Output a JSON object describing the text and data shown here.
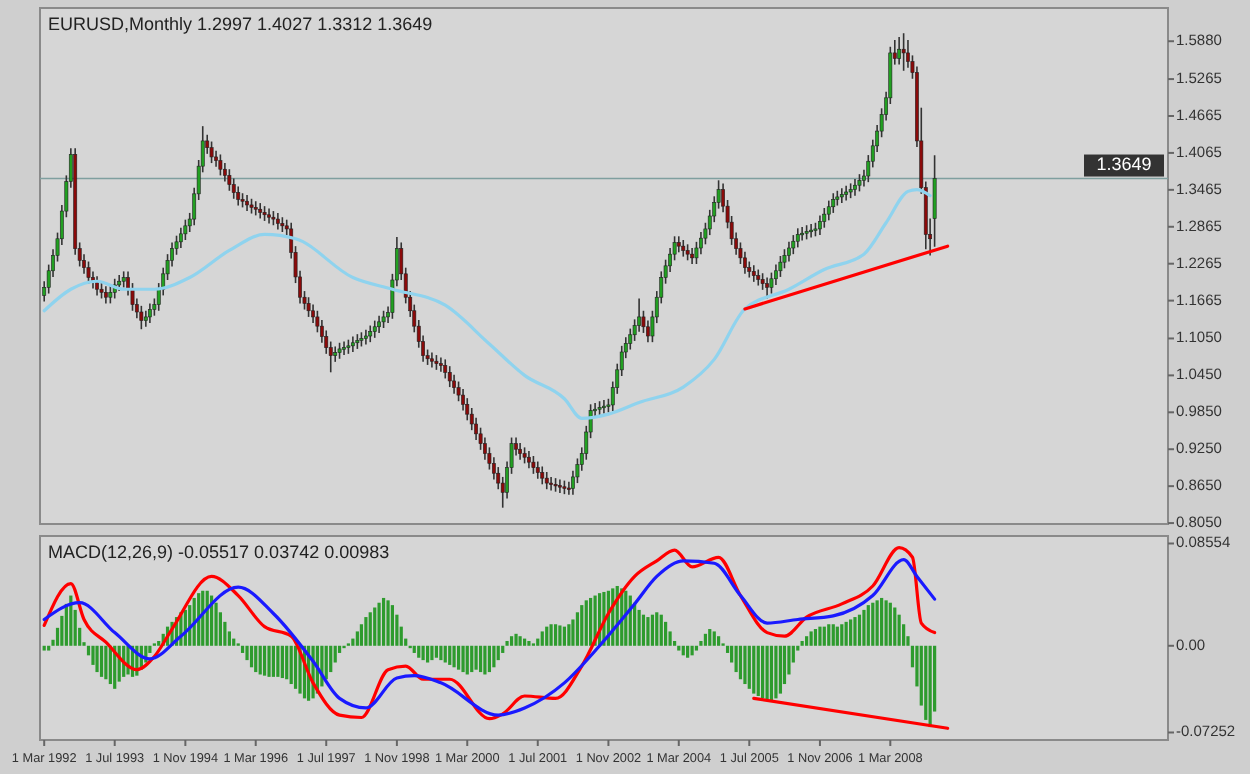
{
  "chart_data": [
    {
      "type": "candlestick",
      "title": "EURUSD,Monthly 1.2997 1.4027 1.3312 1.3649",
      "xlim": [
        "1992-02",
        "2013-06"
      ],
      "ylim": [
        0.8035,
        1.642
      ],
      "tick_labels": "y",
      "yticks": [
        {
          "value": 1.588,
          "label": "1.5880"
        },
        {
          "value": 1.5265,
          "label": "1.5265"
        },
        {
          "value": 1.4665,
          "label": "1.4665"
        },
        {
          "value": 1.4065,
          "label": "1.4065"
        },
        {
          "value": 1.3465,
          "label": "1.3465"
        },
        {
          "value": 1.2865,
          "label": "1.2865"
        },
        {
          "value": 1.2265,
          "label": "1.2265"
        },
        {
          "value": 1.1665,
          "label": "1.1665"
        },
        {
          "value": 1.105,
          "label": "1.1050"
        },
        {
          "value": 1.045,
          "label": "1.0450"
        },
        {
          "value": 0.985,
          "label": "0.9850"
        },
        {
          "value": 0.925,
          "label": "0.9250"
        },
        {
          "value": 0.865,
          "label": "0.8650"
        },
        {
          "value": 0.805,
          "label": "0.8050"
        }
      ],
      "ref_lines": [
        {
          "axis": "y",
          "value": 1.3649,
          "label": "1.3649",
          "color": "#7f9f9f"
        }
      ],
      "x": [
        "1992-03",
        "1992-04",
        "1992-05",
        "1992-06",
        "1992-07",
        "1992-08",
        "1992-09",
        "1992-10",
        "1992-11",
        "1992-12",
        "1993-01",
        "1993-02",
        "1993-03",
        "1993-04",
        "1993-05",
        "1993-06",
        "1993-07",
        "1993-08",
        "1993-09",
        "1993-10",
        "1993-11",
        "1993-12",
        "1994-01",
        "1994-02",
        "1994-03",
        "1994-04",
        "1994-05",
        "1994-06",
        "1994-07",
        "1994-08",
        "1994-09",
        "1994-10",
        "1994-11",
        "1994-12",
        "1995-01",
        "1995-02",
        "1995-03",
        "1995-04",
        "1995-05",
        "1995-06",
        "1995-07",
        "1995-08",
        "1995-09",
        "1995-10",
        "1995-11",
        "1995-12",
        "1996-01",
        "1996-02",
        "1996-03",
        "1996-04",
        "1996-05",
        "1996-06",
        "1996-07",
        "1996-08",
        "1996-09",
        "1996-10",
        "1996-11",
        "1996-12",
        "1997-01",
        "1997-02",
        "1997-03",
        "1997-04",
        "1997-05",
        "1997-06",
        "1997-07",
        "1997-08",
        "1997-09",
        "1997-10",
        "1997-11",
        "1997-12",
        "1998-01",
        "1998-02",
        "1998-03",
        "1998-04",
        "1998-05",
        "1998-06",
        "1998-07",
        "1998-08",
        "1998-09",
        "1998-10",
        "1998-11",
        "1998-12",
        "1999-01",
        "1999-02",
        "1999-03",
        "1999-04",
        "1999-05",
        "1999-06",
        "1999-07",
        "1999-08",
        "1999-09",
        "1999-10",
        "1999-11",
        "1999-12",
        "2000-01",
        "2000-02",
        "2000-03",
        "2000-04",
        "2000-05",
        "2000-06",
        "2000-07",
        "2000-08",
        "2000-09",
        "2000-10",
        "2000-11",
        "2000-12",
        "2001-01",
        "2001-02",
        "2001-03",
        "2001-04",
        "2001-05",
        "2001-06",
        "2001-07",
        "2001-08",
        "2001-09",
        "2001-10",
        "2001-11",
        "2001-12",
        "2002-01",
        "2002-02",
        "2002-03",
        "2002-04",
        "2002-05",
        "2002-06",
        "2002-07",
        "2002-08",
        "2002-09",
        "2002-10",
        "2002-11",
        "2002-12",
        "2003-01",
        "2003-02",
        "2003-03",
        "2003-04",
        "2003-05",
        "2003-06",
        "2003-07",
        "2003-08",
        "2003-09",
        "2003-10",
        "2003-11",
        "2003-12",
        "2004-01",
        "2004-02",
        "2004-03",
        "2004-04",
        "2004-05",
        "2004-06",
        "2004-07",
        "2004-08",
        "2004-09",
        "2004-10",
        "2004-11",
        "2004-12",
        "2005-01",
        "2005-02",
        "2005-03",
        "2005-04",
        "2005-05",
        "2005-06",
        "2005-07",
        "2005-08",
        "2005-09",
        "2005-10",
        "2005-11",
        "2005-12",
        "2006-01",
        "2006-02",
        "2006-03",
        "2006-04",
        "2006-05",
        "2006-06",
        "2006-07",
        "2006-08",
        "2006-09",
        "2006-10",
        "2006-11",
        "2006-12",
        "2007-01",
        "2007-02",
        "2007-03",
        "2007-04",
        "2007-05",
        "2007-06",
        "2007-07",
        "2007-08",
        "2007-09",
        "2007-10",
        "2007-11",
        "2007-12",
        "2008-01",
        "2008-02",
        "2008-03",
        "2008-04",
        "2008-05",
        "2008-06",
        "2008-07",
        "2008-08",
        "2008-09",
        "2008-10",
        "2008-11",
        "2008-12",
        "2009-01"
      ],
      "ohlc": [
        [
          1.175,
          1.198,
          1.165,
          1.188
        ],
        [
          1.188,
          1.225,
          1.178,
          1.215
        ],
        [
          1.215,
          1.25,
          1.205,
          1.24
        ],
        [
          1.24,
          1.277,
          1.23,
          1.267
        ],
        [
          1.267,
          1.322,
          1.257,
          1.312
        ],
        [
          1.312,
          1.37,
          1.302,
          1.36
        ],
        [
          1.36,
          1.414,
          1.35,
          1.404
        ],
        [
          1.404,
          1.414,
          1.241,
          1.251
        ],
        [
          1.251,
          1.261,
          1.222,
          1.232
        ],
        [
          1.232,
          1.242,
          1.21,
          1.22
        ],
        [
          1.22,
          1.23,
          1.194,
          1.204
        ],
        [
          1.204,
          1.214,
          1.186,
          1.196
        ],
        [
          1.196,
          1.206,
          1.175,
          1.185
        ],
        [
          1.185,
          1.195,
          1.17,
          1.18
        ],
        [
          1.18,
          1.19,
          1.162,
          1.172
        ],
        [
          1.172,
          1.19,
          1.162,
          1.18
        ],
        [
          1.18,
          1.202,
          1.17,
          1.192
        ],
        [
          1.192,
          1.208,
          1.182,
          1.198
        ],
        [
          1.198,
          1.214,
          1.188,
          1.204
        ],
        [
          1.204,
          1.214,
          1.175,
          1.185
        ],
        [
          1.185,
          1.195,
          1.15,
          1.16
        ],
        [
          1.16,
          1.17,
          1.138,
          1.148
        ],
        [
          1.148,
          1.158,
          1.12,
          1.134
        ],
        [
          1.134,
          1.15,
          1.124,
          1.14
        ],
        [
          1.14,
          1.162,
          1.13,
          1.152
        ],
        [
          1.152,
          1.17,
          1.142,
          1.16
        ],
        [
          1.16,
          1.195,
          1.15,
          1.185
        ],
        [
          1.185,
          1.22,
          1.175,
          1.21
        ],
        [
          1.21,
          1.242,
          1.2,
          1.232
        ],
        [
          1.232,
          1.261,
          1.222,
          1.251
        ],
        [
          1.251,
          1.272,
          1.241,
          1.262
        ],
        [
          1.262,
          1.285,
          1.252,
          1.275
        ],
        [
          1.275,
          1.298,
          1.265,
          1.288
        ],
        [
          1.288,
          1.309,
          1.278,
          1.299
        ],
        [
          1.299,
          1.35,
          1.289,
          1.34
        ],
        [
          1.34,
          1.395,
          1.33,
          1.385
        ],
        [
          1.385,
          1.45,
          1.375,
          1.426
        ],
        [
          1.426,
          1.436,
          1.405,
          1.415
        ],
        [
          1.415,
          1.425,
          1.39,
          1.4
        ],
        [
          1.4,
          1.41,
          1.384,
          1.394
        ],
        [
          1.394,
          1.404,
          1.37,
          1.38
        ],
        [
          1.38,
          1.39,
          1.36,
          1.37
        ],
        [
          1.37,
          1.38,
          1.345,
          1.355
        ],
        [
          1.355,
          1.365,
          1.332,
          1.342
        ],
        [
          1.342,
          1.352,
          1.321,
          1.331
        ],
        [
          1.331,
          1.341,
          1.318,
          1.328
        ],
        [
          1.328,
          1.338,
          1.312,
          1.322
        ],
        [
          1.322,
          1.332,
          1.308,
          1.318
        ],
        [
          1.318,
          1.328,
          1.305,
          1.315
        ],
        [
          1.315,
          1.325,
          1.3,
          1.31
        ],
        [
          1.31,
          1.32,
          1.296,
          1.306
        ],
        [
          1.306,
          1.316,
          1.292,
          1.302
        ],
        [
          1.302,
          1.312,
          1.289,
          1.299
        ],
        [
          1.299,
          1.309,
          1.282,
          1.292
        ],
        [
          1.292,
          1.302,
          1.278,
          1.288
        ],
        [
          1.288,
          1.298,
          1.273,
          1.283
        ],
        [
          1.283,
          1.293,
          1.235,
          1.245
        ],
        [
          1.245,
          1.255,
          1.195,
          1.205
        ],
        [
          1.205,
          1.215,
          1.162,
          1.172
        ],
        [
          1.172,
          1.182,
          1.152,
          1.162
        ],
        [
          1.162,
          1.172,
          1.14,
          1.15
        ],
        [
          1.15,
          1.16,
          1.13,
          1.14
        ],
        [
          1.14,
          1.15,
          1.115,
          1.125
        ],
        [
          1.125,
          1.135,
          1.098,
          1.108
        ],
        [
          1.108,
          1.118,
          1.08,
          1.09
        ],
        [
          1.09,
          1.1,
          1.05,
          1.077
        ],
        [
          1.077,
          1.092,
          1.067,
          1.082
        ],
        [
          1.082,
          1.098,
          1.072,
          1.088
        ],
        [
          1.088,
          1.1,
          1.078,
          1.09
        ],
        [
          1.09,
          1.103,
          1.08,
          1.093
        ],
        [
          1.093,
          1.108,
          1.083,
          1.098
        ],
        [
          1.098,
          1.112,
          1.088,
          1.102
        ],
        [
          1.102,
          1.115,
          1.092,
          1.105
        ],
        [
          1.105,
          1.119,
          1.095,
          1.109
        ],
        [
          1.109,
          1.126,
          1.099,
          1.116
        ],
        [
          1.116,
          1.134,
          1.106,
          1.124
        ],
        [
          1.124,
          1.142,
          1.114,
          1.132
        ],
        [
          1.132,
          1.15,
          1.122,
          1.14
        ],
        [
          1.14,
          1.157,
          1.13,
          1.147
        ],
        [
          1.147,
          1.21,
          1.137,
          1.2
        ],
        [
          1.2,
          1.27,
          1.19,
          1.251
        ],
        [
          1.251,
          1.261,
          1.2,
          1.21
        ],
        [
          1.21,
          1.22,
          1.162,
          1.172
        ],
        [
          1.172,
          1.182,
          1.14,
          1.15
        ],
        [
          1.15,
          1.16,
          1.115,
          1.125
        ],
        [
          1.125,
          1.135,
          1.09,
          1.1
        ],
        [
          1.1,
          1.11,
          1.067,
          1.077
        ],
        [
          1.077,
          1.087,
          1.062,
          1.072
        ],
        [
          1.072,
          1.082,
          1.058,
          1.068
        ],
        [
          1.068,
          1.078,
          1.054,
          1.064
        ],
        [
          1.064,
          1.074,
          1.051,
          1.061
        ],
        [
          1.061,
          1.071,
          1.04,
          1.05
        ],
        [
          1.05,
          1.06,
          1.026,
          1.036
        ],
        [
          1.036,
          1.046,
          1.015,
          1.025
        ],
        [
          1.025,
          1.035,
          1.003,
          1.013
        ],
        [
          1.013,
          1.023,
          0.988,
          0.998
        ],
        [
          0.998,
          1.008,
          0.972,
          0.982
        ],
        [
          0.982,
          0.992,
          0.956,
          0.966
        ],
        [
          0.966,
          0.976,
          0.94,
          0.95
        ],
        [
          0.95,
          0.96,
          0.924,
          0.934
        ],
        [
          0.934,
          0.944,
          0.908,
          0.918
        ],
        [
          0.918,
          0.928,
          0.892,
          0.902
        ],
        [
          0.902,
          0.912,
          0.876,
          0.886
        ],
        [
          0.886,
          0.896,
          0.86,
          0.87
        ],
        [
          0.87,
          0.88,
          0.83,
          0.855
        ],
        [
          0.855,
          0.905,
          0.845,
          0.895
        ],
        [
          0.895,
          0.944,
          0.885,
          0.934
        ],
        [
          0.934,
          0.944,
          0.915,
          0.925
        ],
        [
          0.925,
          0.935,
          0.908,
          0.918
        ],
        [
          0.918,
          0.928,
          0.902,
          0.912
        ],
        [
          0.912,
          0.922,
          0.894,
          0.904
        ],
        [
          0.904,
          0.914,
          0.885,
          0.895
        ],
        [
          0.895,
          0.905,
          0.877,
          0.887
        ],
        [
          0.887,
          0.897,
          0.868,
          0.878
        ],
        [
          0.878,
          0.888,
          0.86,
          0.87
        ],
        [
          0.87,
          0.88,
          0.858,
          0.868
        ],
        [
          0.868,
          0.878,
          0.856,
          0.866
        ],
        [
          0.866,
          0.876,
          0.854,
          0.864
        ],
        [
          0.864,
          0.874,
          0.852,
          0.862
        ],
        [
          0.862,
          0.872,
          0.851,
          0.861
        ],
        [
          0.861,
          0.89,
          0.851,
          0.88
        ],
        [
          0.88,
          0.91,
          0.87,
          0.9
        ],
        [
          0.9,
          0.928,
          0.89,
          0.918
        ],
        [
          0.918,
          0.963,
          0.908,
          0.953
        ],
        [
          0.953,
          0.998,
          0.943,
          0.988
        ],
        [
          0.988,
          1.0,
          0.978,
          0.99
        ],
        [
          0.99,
          1.003,
          0.98,
          0.993
        ],
        [
          0.993,
          1.005,
          0.983,
          0.995
        ],
        [
          0.995,
          1.007,
          0.985,
          0.997
        ],
        [
          0.997,
          1.035,
          0.987,
          1.025
        ],
        [
          1.025,
          1.064,
          1.015,
          1.054
        ],
        [
          1.054,
          1.093,
          1.044,
          1.083
        ],
        [
          1.083,
          1.107,
          1.073,
          1.097
        ],
        [
          1.097,
          1.121,
          1.087,
          1.111
        ],
        [
          1.111,
          1.136,
          1.101,
          1.126
        ],
        [
          1.126,
          1.17,
          1.116,
          1.14
        ],
        [
          1.14,
          1.15,
          1.114,
          1.124
        ],
        [
          1.124,
          1.134,
          1.099,
          1.109
        ],
        [
          1.109,
          1.15,
          1.099,
          1.14
        ],
        [
          1.14,
          1.182,
          1.13,
          1.172
        ],
        [
          1.172,
          1.214,
          1.162,
          1.204
        ],
        [
          1.204,
          1.233,
          1.194,
          1.223
        ],
        [
          1.223,
          1.252,
          1.213,
          1.242
        ],
        [
          1.242,
          1.271,
          1.232,
          1.261
        ],
        [
          1.261,
          1.271,
          1.245,
          1.255
        ],
        [
          1.255,
          1.265,
          1.238,
          1.248
        ],
        [
          1.248,
          1.258,
          1.232,
          1.242
        ],
        [
          1.242,
          1.252,
          1.226,
          1.236
        ],
        [
          1.236,
          1.262,
          1.226,
          1.252
        ],
        [
          1.252,
          1.278,
          1.242,
          1.268
        ],
        [
          1.268,
          1.293,
          1.258,
          1.283
        ],
        [
          1.283,
          1.314,
          1.273,
          1.304
        ],
        [
          1.304,
          1.336,
          1.294,
          1.326
        ],
        [
          1.326,
          1.362,
          1.316,
          1.347
        ],
        [
          1.347,
          1.357,
          1.31,
          1.32
        ],
        [
          1.32,
          1.33,
          1.284,
          1.294
        ],
        [
          1.294,
          1.304,
          1.257,
          1.267
        ],
        [
          1.267,
          1.277,
          1.241,
          1.251
        ],
        [
          1.251,
          1.261,
          1.226,
          1.236
        ],
        [
          1.236,
          1.246,
          1.21,
          1.22
        ],
        [
          1.22,
          1.23,
          1.204,
          1.214
        ],
        [
          1.214,
          1.224,
          1.197,
          1.207
        ],
        [
          1.207,
          1.217,
          1.191,
          1.201
        ],
        [
          1.201,
          1.211,
          1.184,
          1.194
        ],
        [
          1.194,
          1.204,
          1.17,
          1.188
        ],
        [
          1.188,
          1.212,
          1.178,
          1.202
        ],
        [
          1.202,
          1.225,
          1.192,
          1.215
        ],
        [
          1.215,
          1.239,
          1.205,
          1.229
        ],
        [
          1.229,
          1.25,
          1.219,
          1.24
        ],
        [
          1.24,
          1.262,
          1.23,
          1.252
        ],
        [
          1.252,
          1.273,
          1.242,
          1.263
        ],
        [
          1.263,
          1.284,
          1.253,
          1.274
        ],
        [
          1.274,
          1.286,
          1.264,
          1.276
        ],
        [
          1.276,
          1.289,
          1.266,
          1.279
        ],
        [
          1.279,
          1.291,
          1.269,
          1.281
        ],
        [
          1.281,
          1.293,
          1.271,
          1.283
        ],
        [
          1.283,
          1.305,
          1.273,
          1.295
        ],
        [
          1.295,
          1.317,
          1.285,
          1.307
        ],
        [
          1.307,
          1.329,
          1.297,
          1.319
        ],
        [
          1.319,
          1.341,
          1.309,
          1.331
        ],
        [
          1.331,
          1.345,
          1.321,
          1.335
        ],
        [
          1.335,
          1.349,
          1.325,
          1.339
        ],
        [
          1.339,
          1.353,
          1.329,
          1.343
        ],
        [
          1.343,
          1.357,
          1.333,
          1.347
        ],
        [
          1.347,
          1.364,
          1.337,
          1.354
        ],
        [
          1.354,
          1.372,
          1.344,
          1.362
        ],
        [
          1.362,
          1.379,
          1.352,
          1.369
        ],
        [
          1.369,
          1.403,
          1.359,
          1.393
        ],
        [
          1.393,
          1.428,
          1.383,
          1.418
        ],
        [
          1.418,
          1.452,
          1.408,
          1.442
        ],
        [
          1.442,
          1.479,
          1.432,
          1.469
        ],
        [
          1.469,
          1.506,
          1.459,
          1.496
        ],
        [
          1.496,
          1.579,
          1.486,
          1.569
        ],
        [
          1.569,
          1.59,
          1.55,
          1.56
        ],
        [
          1.56,
          1.595,
          1.55,
          1.575
        ],
        [
          1.575,
          1.601,
          1.54,
          1.569
        ],
        [
          1.569,
          1.59,
          1.545,
          1.555
        ],
        [
          1.555,
          1.565,
          1.527,
          1.537
        ],
        [
          1.537,
          1.547,
          1.416,
          1.426
        ],
        [
          1.426,
          1.48,
          1.34,
          1.35
        ],
        [
          1.35,
          1.36,
          1.25,
          1.274
        ],
        [
          1.274,
          1.3,
          1.24,
          1.267
        ],
        [
          1.2997,
          1.4027,
          1.254,
          1.3649
        ]
      ],
      "series": [
        {
          "type": "line",
          "color": "#8fd3ee",
          "x": [
            "1992-03",
            "1992-09",
            "1993-03",
            "1993-09",
            "1994-04",
            "1994-12",
            "1995-09",
            "1996-05",
            "1996-12",
            "1998-01",
            "1998-10",
            "1999-10",
            "2000-08",
            "2001-04",
            "2002-01",
            "2002-05",
            "2002-11",
            "2003-06",
            "2004-04",
            "2004-11",
            "2005-06",
            "2006-04",
            "2006-12",
            "2007-09",
            "2008-02",
            "2008-07",
            "2008-09",
            "2008-12"
          ],
          "values": [
            1.15,
            1.185,
            1.198,
            1.185,
            1.185,
            1.204,
            1.248,
            1.274,
            1.267,
            1.204,
            1.185,
            1.159,
            1.096,
            1.045,
            1.007,
            0.975,
            0.982,
            1.001,
            1.026,
            1.071,
            1.153,
            1.185,
            1.217,
            1.242,
            1.293,
            1.344,
            1.347,
            1.337
          ]
        },
        {
          "type": "line",
          "color": "#ff0000",
          "x": [
            "2005-06",
            "2009-04"
          ],
          "values": [
            1.153,
            1.255
          ]
        }
      ]
    },
    {
      "type": "bar",
      "title": "MACD(12,26,9) -0.05517 0.03742 0.00983",
      "xlim": [
        "1992-02",
        "2013-06"
      ],
      "ylim": [
        -0.0788,
        0.0918
      ],
      "yticks": [
        {
          "value": 0.08554,
          "label": "0.08554"
        },
        {
          "value": 0,
          "label": "0.00"
        },
        {
          "value": -0.07252,
          "label": "-0.07252"
        }
      ],
      "xticks": [
        {
          "value": "1992-03",
          "label": "1 Mar 1992"
        },
        {
          "value": "1993-07",
          "label": "1 Jul 1993"
        },
        {
          "value": "1994-11",
          "label": "1 Nov 1994"
        },
        {
          "value": "1996-03",
          "label": "1 Mar 1996"
        },
        {
          "value": "1997-07",
          "label": "1 Jul 1997"
        },
        {
          "value": "1998-11",
          "label": "1 Nov 1998"
        },
        {
          "value": "2000-03",
          "label": "1 Mar 2000"
        },
        {
          "value": "2001-07",
          "label": "1 Jul 2001"
        },
        {
          "value": "2002-11",
          "label": "1 Nov 2002"
        },
        {
          "value": "2004-03",
          "label": "1 Mar 2004"
        },
        {
          "value": "2005-07",
          "label": "1 Jul 2005"
        },
        {
          "value": "2006-11",
          "label": "1 Nov 2006"
        },
        {
          "value": "2008-03",
          "label": "1 Mar 2008"
        }
      ],
      "x": [
        "1992-03",
        "1992-04",
        "1992-05",
        "1992-06",
        "1992-07",
        "1992-08",
        "1992-09",
        "1992-10",
        "1992-11",
        "1992-12",
        "1993-01",
        "1993-02",
        "1993-03",
        "1993-04",
        "1993-05",
        "1993-06",
        "1993-07",
        "1993-08",
        "1993-09",
        "1993-10",
        "1993-11",
        "1993-12",
        "1994-01",
        "1994-02",
        "1994-03",
        "1994-04",
        "1994-05",
        "1994-06",
        "1994-07",
        "1994-08",
        "1994-09",
        "1994-10",
        "1994-11",
        "1994-12",
        "1995-01",
        "1995-02",
        "1995-03",
        "1995-04",
        "1995-05",
        "1995-06",
        "1995-07",
        "1995-08",
        "1995-09",
        "1995-10",
        "1995-11",
        "1995-12",
        "1996-01",
        "1996-02",
        "1996-03",
        "1996-04",
        "1996-05",
        "1996-06",
        "1996-07",
        "1996-08",
        "1996-09",
        "1996-10",
        "1996-11",
        "1996-12",
        "1997-01",
        "1997-02",
        "1997-03",
        "1997-04",
        "1997-05",
        "1997-06",
        "1997-07",
        "1997-08",
        "1997-09",
        "1997-10",
        "1997-11",
        "1997-12",
        "1998-01",
        "1998-02",
        "1998-03",
        "1998-04",
        "1998-05",
        "1998-06",
        "1998-07",
        "1998-08",
        "1998-09",
        "1998-10",
        "1998-11",
        "1998-12",
        "1999-01",
        "1999-02",
        "1999-03",
        "1999-04",
        "1999-05",
        "1999-06",
        "1999-07",
        "1999-08",
        "1999-09",
        "1999-10",
        "1999-11",
        "1999-12",
        "2000-01",
        "2000-02",
        "2000-03",
        "2000-04",
        "2000-05",
        "2000-06",
        "2000-07",
        "2000-08",
        "2000-09",
        "2000-10",
        "2000-11",
        "2000-12",
        "2001-01",
        "2001-02",
        "2001-03",
        "2001-04",
        "2001-05",
        "2001-06",
        "2001-07",
        "2001-08",
        "2001-09",
        "2001-10",
        "2001-11",
        "2001-12",
        "2002-01",
        "2002-02",
        "2002-03",
        "2002-04",
        "2002-05",
        "2002-06",
        "2002-07",
        "2002-08",
        "2002-09",
        "2002-10",
        "2002-11",
        "2002-12",
        "2003-01",
        "2003-02",
        "2003-03",
        "2003-04",
        "2003-05",
        "2003-06",
        "2003-07",
        "2003-08",
        "2003-09",
        "2003-10",
        "2003-11",
        "2003-12",
        "2004-01",
        "2004-02",
        "2004-03",
        "2004-04",
        "2004-05",
        "2004-06",
        "2004-07",
        "2004-08",
        "2004-09",
        "2004-10",
        "2004-11",
        "2004-12",
        "2005-01",
        "2005-02",
        "2005-03",
        "2005-04",
        "2005-05",
        "2005-06",
        "2005-07",
        "2005-08",
        "2005-09",
        "2005-10",
        "2005-11",
        "2005-12",
        "2006-01",
        "2006-02",
        "2006-03",
        "2006-04",
        "2006-05",
        "2006-06",
        "2006-07",
        "2006-08",
        "2006-09",
        "2006-10",
        "2006-11",
        "2006-12",
        "2007-01",
        "2007-02",
        "2007-03",
        "2007-04",
        "2007-05",
        "2007-06",
        "2007-07",
        "2007-08",
        "2007-09",
        "2007-10",
        "2007-11",
        "2007-12",
        "2008-01",
        "2008-02",
        "2008-03",
        "2008-04",
        "2008-05",
        "2008-06",
        "2008-07",
        "2008-08",
        "2008-09",
        "2008-10",
        "2008-11",
        "2008-12",
        "2009-01"
      ],
      "series": [
        {
          "type": "bar",
          "color": "#2e9b2e",
          "values": [
            -0.004,
            -0.004,
            0.005,
            0.015,
            0.025,
            0.035,
            0.042,
            0.03,
            0.015,
            0.003,
            -0.008,
            -0.016,
            -0.022,
            -0.026,
            -0.028,
            -0.032,
            -0.036,
            -0.03,
            -0.026,
            -0.024,
            -0.026,
            -0.025,
            -0.02,
            -0.014,
            -0.006,
            0.002,
            0.004,
            0.01,
            0.016,
            0.02,
            0.024,
            0.028,
            0.03,
            0.034,
            0.04,
            0.044,
            0.046,
            0.046,
            0.042,
            0.036,
            0.028,
            0.02,
            0.012,
            0.006,
            0.002,
            -0.006,
            -0.012,
            -0.018,
            -0.022,
            -0.024,
            -0.025,
            -0.026,
            -0.026,
            -0.026,
            -0.027,
            -0.028,
            -0.032,
            -0.036,
            -0.04,
            -0.044,
            -0.046,
            -0.044,
            -0.04,
            -0.034,
            -0.028,
            -0.022,
            -0.014,
            -0.006,
            -0.002,
            0.002,
            0.006,
            0.012,
            0.018,
            0.024,
            0.028,
            0.032,
            0.036,
            0.04,
            0.038,
            0.034,
            0.026,
            0.016,
            0.006,
            -0.002,
            -0.006,
            -0.01,
            -0.012,
            -0.014,
            -0.012,
            -0.01,
            -0.012,
            -0.014,
            -0.016,
            -0.018,
            -0.02,
            -0.022,
            -0.024,
            -0.022,
            -0.02,
            -0.022,
            -0.024,
            -0.022,
            -0.018,
            -0.012,
            -0.006,
            0.004,
            0.008,
            0.01,
            0.008,
            0.006,
            0.004,
            0.002,
            0.006,
            0.012,
            0.016,
            0.018,
            0.018,
            0.017,
            0.016,
            0.018,
            0.022,
            0.028,
            0.034,
            0.038,
            0.04,
            0.042,
            0.044,
            0.045,
            0.046,
            0.048,
            0.05,
            0.048,
            0.046,
            0.042,
            0.036,
            0.03,
            0.026,
            0.024,
            0.026,
            0.028,
            0.026,
            0.02,
            0.012,
            0.004,
            -0.004,
            -0.008,
            -0.01,
            -0.008,
            -0.004,
            0.004,
            0.01,
            0.014,
            0.012,
            0.008,
            0.002,
            -0.006,
            -0.014,
            -0.022,
            -0.028,
            -0.032,
            -0.036,
            -0.04,
            -0.042,
            -0.044,
            -0.045,
            -0.046,
            -0.044,
            -0.04,
            -0.032,
            -0.024,
            -0.014,
            -0.004,
            0.004,
            0.008,
            0.012,
            0.014,
            0.016,
            0.016,
            0.018,
            0.018,
            0.016,
            0.018,
            0.02,
            0.022,
            0.024,
            0.026,
            0.03,
            0.034,
            0.036,
            0.038,
            0.04,
            0.038,
            0.036,
            0.032,
            0.026,
            0.018,
            0.008,
            -0.018,
            -0.034,
            -0.05,
            -0.062,
            -0.068,
            -0.055
          ]
        },
        {
          "type": "line",
          "color": "#ff0000",
          "x": [
            "1992-03",
            "1992-09",
            "1992-12",
            "1993-05",
            "1993-12",
            "1994-04",
            "1994-08",
            "1995-05",
            "1995-11",
            "1996-05",
            "1996-11",
            "1997-04",
            "1997-10",
            "1998-03",
            "1998-09",
            "1999-01",
            "1999-05",
            "1999-11",
            "2000-08",
            "2000-11",
            "2001-04",
            "2001-11",
            "2002-05",
            "2002-11",
            "2003-05",
            "2003-10",
            "2004-02",
            "2004-06",
            "2004-12",
            "2005-05",
            "2005-11",
            "2006-03",
            "2006-08",
            "2007-04",
            "2007-11",
            "2008-05",
            "2008-08",
            "2008-10",
            "2009-01"
          ],
          "values": [
            0.017,
            0.052,
            0.022,
            0.003,
            -0.02,
            -0.009,
            0.014,
            0.058,
            0.042,
            0.016,
            0.008,
            -0.031,
            -0.058,
            -0.06,
            -0.02,
            -0.017,
            -0.028,
            -0.028,
            -0.061,
            -0.057,
            -0.042,
            -0.044,
            -0.017,
            0.027,
            0.058,
            0.071,
            0.08,
            0.066,
            0.074,
            0.042,
            0.011,
            0.008,
            0.024,
            0.035,
            0.05,
            0.082,
            0.074,
            0.019,
            0.011
          ]
        },
        {
          "type": "line",
          "color": "#1a1aff",
          "x": [
            "1992-03",
            "1992-11",
            "1993-07",
            "1994-03",
            "1994-10",
            "1995-11",
            "1996-07",
            "1997-04",
            "1997-10",
            "1998-04",
            "1998-11",
            "1999-03",
            "1999-09",
            "2000-10",
            "2001-04",
            "2002-01",
            "2002-09",
            "2003-05",
            "2003-10",
            "2004-04",
            "2004-11",
            "2005-05",
            "2005-11",
            "2006-06",
            "2007-02",
            "2007-11",
            "2008-06",
            "2008-09",
            "2009-01"
          ],
          "values": [
            0.022,
            0.036,
            0.011,
            -0.011,
            0.008,
            0.049,
            0.027,
            -0.013,
            -0.044,
            -0.052,
            -0.027,
            -0.025,
            -0.031,
            -0.058,
            -0.052,
            -0.031,
            0.0,
            0.035,
            0.058,
            0.071,
            0.069,
            0.042,
            0.019,
            0.022,
            0.025,
            0.042,
            0.072,
            0.058,
            0.039
          ]
        },
        {
          "type": "line",
          "color": "#ff0000",
          "x": [
            "2005-08",
            "2009-04"
          ],
          "values": [
            -0.044,
            -0.069
          ]
        }
      ]
    }
  ]
}
